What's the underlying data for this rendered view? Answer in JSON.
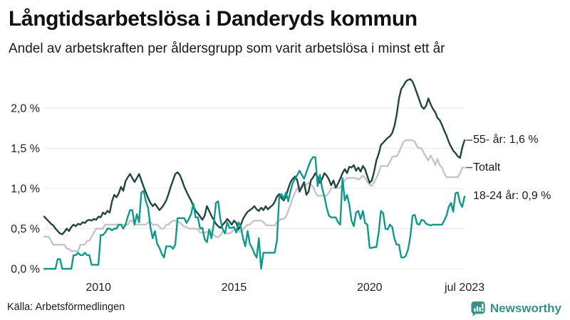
{
  "header": {
    "title": "Långtidsarbetslösa i Danderyds kommun",
    "subtitle": "Andel av arbetskraften per åldersgrupp som varit arbetslösa i minst ett år"
  },
  "footer": {
    "source": "Källa: Arbetsförmedlingen",
    "brand": "Newsworthy"
  },
  "colors": {
    "series_55": "#20463f",
    "series_total": "#c6c2ce",
    "series_1824": "#0e9a8a",
    "gridline": "#e8e7ec",
    "tick_text": "#222222",
    "brand_teal": "#35928a",
    "end_tick": "#555555"
  },
  "chart_data": {
    "type": "line",
    "title": "Långtidsarbetslösa i Danderyds kommun",
    "subtitle": "Andel av arbetskraften per åldersgrupp som varit arbetslösa i minst ett år",
    "unit": "percent of labour force",
    "frequency": "monthly",
    "x_start": "2008-01",
    "x_end": "2023-07",
    "ylim": [
      0,
      2.4
    ],
    "grid": true,
    "legend_position": "right-end-labels",
    "y_ticks": [
      {
        "value": 0.0,
        "label": "0,0 %"
      },
      {
        "value": 0.5,
        "label": "0,5 %"
      },
      {
        "value": 1.0,
        "label": "1,0 %"
      },
      {
        "value": 1.5,
        "label": "1,5 %"
      },
      {
        "value": 2.0,
        "label": "2,0 %"
      }
    ],
    "x_ticks": [
      {
        "index": 24,
        "label": "2010"
      },
      {
        "index": 84,
        "label": "2015"
      },
      {
        "index": 144,
        "label": "2020"
      },
      {
        "index": 186,
        "label": "jul 2023"
      }
    ],
    "series": [
      {
        "name": "55- år",
        "end_label": "55- år: 1,6 %",
        "last_value": 1.6,
        "color": "#20463f",
        "has_end_tick": true,
        "values": [
          0.65,
          0.62,
          0.59,
          0.56,
          0.54,
          0.5,
          0.47,
          0.44,
          0.43,
          0.46,
          0.5,
          0.47,
          0.52,
          0.55,
          0.53,
          0.56,
          0.55,
          0.58,
          0.57,
          0.6,
          0.61,
          0.6,
          0.62,
          0.61,
          0.65,
          0.64,
          0.7,
          0.68,
          0.72,
          0.7,
          0.84,
          0.92,
          0.89,
          0.94,
          1.02,
          0.97,
          1.09,
          1.14,
          1.18,
          1.13,
          1.08,
          1.13,
          1.18,
          1.1,
          1.02,
          0.95,
          0.88,
          0.82,
          0.78,
          0.81,
          0.77,
          0.73,
          0.76,
          0.8,
          0.85,
          0.93,
          1.02,
          1.1,
          1.18,
          1.2,
          1.17,
          1.1,
          1.02,
          0.96,
          0.9,
          0.85,
          0.78,
          0.72,
          0.69,
          0.65,
          0.61,
          0.66,
          0.78,
          0.72,
          0.66,
          0.61,
          0.56,
          0.53,
          0.51,
          0.55,
          0.58,
          0.62,
          0.59,
          0.55,
          0.6,
          0.57,
          0.49,
          0.55,
          0.62,
          0.67,
          0.71,
          0.73,
          0.75,
          0.78,
          0.74,
          0.72,
          0.76,
          0.73,
          0.78,
          0.74,
          0.77,
          0.79,
          0.83,
          0.9,
          0.93,
          0.88,
          0.85,
          0.9,
          1.0,
          1.08,
          1.12,
          1.15,
          1.1,
          0.96,
          1.02,
          1.08,
          0.92,
          0.96,
          1.1,
          1.14,
          1.19,
          1.14,
          1.07,
          1.12,
          1.19,
          1.16,
          1.11,
          1.04,
          1.1,
          1.01,
          1.06,
          1.12,
          1.19,
          1.24,
          1.19,
          1.27,
          1.26,
          1.29,
          1.22,
          1.26,
          1.21,
          1.28,
          1.24,
          1.15,
          1.07,
          1.1,
          1.21,
          1.35,
          1.43,
          1.54,
          1.57,
          1.6,
          1.63,
          1.65,
          1.69,
          1.78,
          1.92,
          2.12,
          2.24,
          2.28,
          2.33,
          2.35,
          2.36,
          2.33,
          2.26,
          2.18,
          2.1,
          2.02,
          1.99,
          2.03,
          2.12,
          2.05,
          1.99,
          1.95,
          1.88,
          1.85,
          1.79,
          1.72,
          1.66,
          1.58,
          1.52,
          1.47,
          1.44,
          1.4,
          1.38,
          1.51,
          1.6
        ]
      },
      {
        "name": "Totalt",
        "end_label": "Totalt",
        "last_value": 1.26,
        "color": "#c6c2ce",
        "has_end_tick": true,
        "values": [
          0.4,
          0.4,
          0.4,
          0.35,
          0.3,
          0.3,
          0.3,
          0.3,
          0.3,
          0.3,
          0.25,
          0.25,
          0.22,
          0.22,
          0.22,
          0.22,
          0.3,
          0.3,
          0.3,
          0.35,
          0.35,
          0.4,
          0.45,
          0.5,
          0.5,
          0.5,
          0.5,
          0.55,
          0.55,
          0.55,
          0.55,
          0.55,
          0.55,
          0.55,
          0.55,
          0.55,
          0.55,
          0.55,
          0.6,
          0.6,
          0.55,
          0.55,
          0.55,
          0.55,
          0.55,
          0.55,
          0.58,
          0.58,
          0.55,
          0.55,
          0.55,
          0.52,
          0.5,
          0.5,
          0.55,
          0.55,
          0.58,
          0.6,
          0.6,
          0.58,
          0.58,
          0.55,
          0.52,
          0.52,
          0.5,
          0.5,
          0.5,
          0.5,
          0.49,
          0.45,
          0.45,
          0.45,
          0.46,
          0.46,
          0.46,
          0.42,
          0.4,
          0.39,
          0.42,
          0.46,
          0.46,
          0.44,
          0.44,
          0.46,
          0.49,
          0.49,
          0.46,
          0.46,
          0.49,
          0.52,
          0.55,
          0.55,
          0.58,
          0.6,
          0.6,
          0.6,
          0.6,
          0.58,
          0.55,
          0.54,
          0.54,
          0.54,
          0.54,
          0.58,
          0.6,
          0.62,
          0.62,
          0.65,
          0.72,
          0.8,
          0.88,
          0.95,
          1.0,
          1.02,
          1.02,
          1.02,
          1.05,
          1.07,
          1.05,
          1.02,
          0.95,
          0.91,
          0.91,
          0.91,
          0.91,
          0.91,
          0.95,
          1.0,
          1.01,
          1.01,
          1.01,
          1.01,
          1.05,
          1.1,
          1.13,
          1.13,
          1.13,
          1.13,
          1.13,
          1.11,
          1.13,
          1.16,
          1.13,
          1.08,
          1.05,
          1.03,
          1.08,
          1.13,
          1.2,
          1.28,
          1.28,
          1.28,
          1.28,
          1.33,
          1.39,
          1.4,
          1.4,
          1.45,
          1.52,
          1.58,
          1.6,
          1.6,
          1.6,
          1.6,
          1.58,
          1.52,
          1.5,
          1.5,
          1.44,
          1.39,
          1.35,
          1.41,
          1.36,
          1.29,
          1.37,
          1.29,
          1.26,
          1.19,
          1.14,
          1.14,
          1.14,
          1.14,
          1.14,
          1.14,
          1.19,
          1.26,
          1.26
        ]
      },
      {
        "name": "18-24 år",
        "end_label": "18-24 år: 0,9 %",
        "last_value": 0.9,
        "color": "#0e9a8a",
        "has_end_tick": false,
        "values": [
          0.0,
          0.0,
          0.0,
          0.0,
          0.0,
          0.0,
          0.12,
          0.12,
          0.0,
          0.0,
          0.0,
          0.0,
          0.0,
          0.17,
          0.17,
          0.2,
          0.17,
          0.17,
          0.2,
          0.17,
          0.17,
          0.05,
          0.05,
          0.05,
          0.05,
          0.42,
          0.42,
          0.45,
          0.5,
          0.5,
          0.48,
          0.5,
          0.5,
          0.55,
          0.55,
          0.5,
          0.55,
          0.65,
          0.73,
          0.73,
          0.55,
          0.68,
          0.58,
          0.95,
          0.97,
          0.84,
          0.76,
          0.52,
          0.38,
          0.47,
          0.31,
          0.26,
          0.19,
          0.14,
          0.28,
          0.28,
          0.28,
          0.25,
          0.3,
          0.63,
          0.63,
          0.63,
          0.63,
          0.57,
          0.62,
          0.68,
          0.81,
          0.64,
          0.64,
          0.5,
          0.51,
          0.37,
          0.33,
          0.49,
          0.38,
          0.55,
          0.82,
          0.84,
          0.61,
          0.49,
          0.44,
          0.58,
          0.51,
          0.51,
          0.52,
          0.45,
          0.58,
          0.52,
          0.38,
          0.28,
          0.47,
          0.31,
          0.26,
          0.19,
          0.14,
          0.38,
          0.0,
          0.2,
          0.2,
          0.2,
          0.2,
          0.2,
          0.2,
          0.35,
          0.9,
          0.93,
          0.87,
          0.95,
          0.84,
          0.97,
          1.07,
          1.12,
          1.17,
          1.22,
          1.17,
          1.12,
          1.2,
          1.28,
          1.35,
          1.39,
          1.39,
          1.03,
          1.17,
          1.0,
          0.9,
          0.76,
          0.66,
          0.64,
          0.64,
          0.64,
          0.58,
          0.55,
          1.13,
          0.85,
          0.92,
          0.8,
          0.6,
          0.53,
          0.7,
          0.72,
          0.62,
          0.72,
          0.57,
          0.55,
          0.26,
          0.26,
          0.27,
          0.27,
          0.45,
          0.72,
          0.69,
          0.5,
          0.49,
          0.55,
          0.52,
          0.37,
          0.3,
          0.3,
          0.14,
          0.14,
          0.16,
          0.24,
          0.4,
          0.66,
          0.67,
          0.56,
          0.55,
          0.61,
          0.6,
          0.56,
          0.55,
          0.54,
          0.55,
          0.55,
          0.55,
          0.55,
          0.55,
          0.6,
          0.66,
          0.77,
          0.82,
          0.71,
          0.94,
          0.95,
          0.82,
          0.77,
          0.9
        ]
      }
    ]
  }
}
